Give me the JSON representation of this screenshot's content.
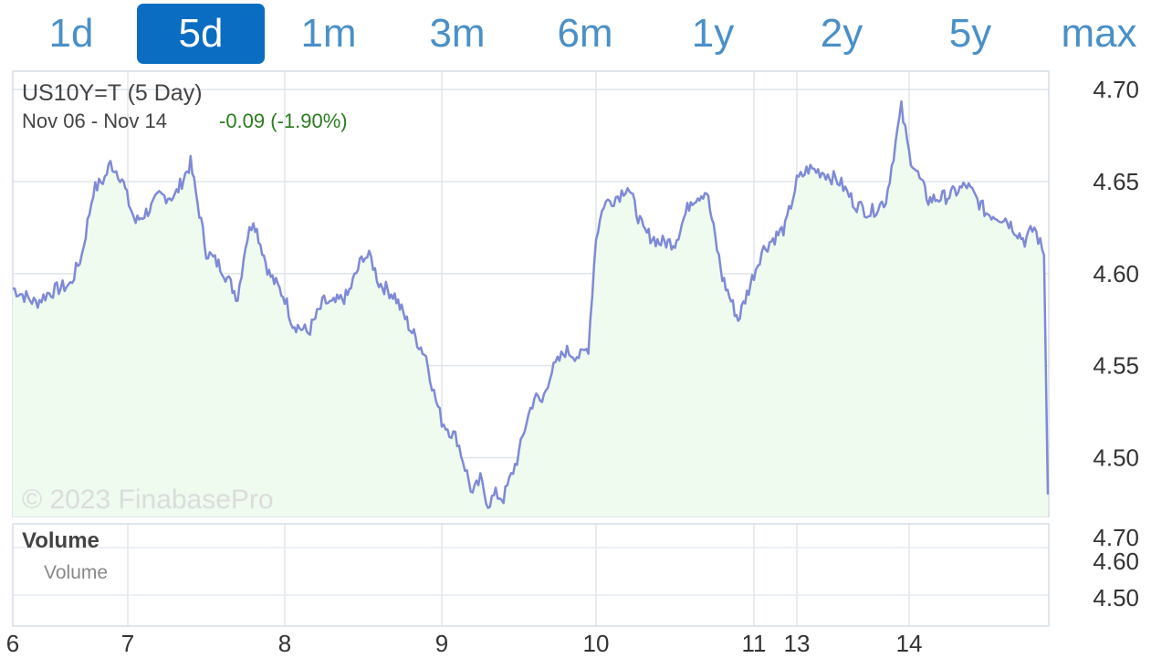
{
  "range_tabs": [
    {
      "label": "1d",
      "active": false
    },
    {
      "label": "5d",
      "active": true
    },
    {
      "label": "1m",
      "active": false
    },
    {
      "label": "3m",
      "active": false
    },
    {
      "label": "6m",
      "active": false
    },
    {
      "label": "1y",
      "active": false
    },
    {
      "label": "2y",
      "active": false
    },
    {
      "label": "5y",
      "active": false
    },
    {
      "label": "max",
      "active": false
    }
  ],
  "colors": {
    "line": "#7f8ad6",
    "fill": "#eefbee",
    "change": "#2a7d1e",
    "tab_active": "#0a6dc2",
    "tab_text": "#4a90c8"
  },
  "chart_data": {
    "type": "line",
    "title": "US10Y=T (5 Day)",
    "subtitle": "Nov 06 - Nov 14",
    "change": "-0.09 (-1.90%)",
    "watermark": "© 2023 FinabasePro",
    "ylim": [
      4.468,
      4.71
    ],
    "y_ticks": [
      "4.70",
      "4.65",
      "4.60",
      "4.55",
      "4.50"
    ],
    "y_tick_values": [
      4.7,
      4.65,
      4.6,
      4.55,
      4.5
    ],
    "x_ticks": [
      "6",
      "7",
      "8",
      "9",
      "10",
      "11",
      "13",
      "14"
    ],
    "x_tick_positions": [
      0,
      1,
      2,
      3,
      4,
      5,
      5.275,
      6.0
    ],
    "x_range": [
      0,
      6.68
    ],
    "grid": true,
    "series": [
      {
        "x": [
          0,
          0.1,
          0.2,
          0.3,
          0.4,
          0.5,
          0.6,
          0.7,
          0.8,
          0.85,
          0.95,
          1.05,
          1.15,
          1.2,
          1.3,
          1.4,
          1.5,
          1.6,
          1.7,
          1.75,
          1.8,
          1.9,
          2.0,
          2.05,
          2.15,
          2.25,
          2.3,
          2.4,
          2.5,
          2.55,
          2.6,
          2.7,
          2.8,
          2.9,
          2.95,
          3.0,
          3.1,
          3.2,
          3.25,
          3.3,
          3.35,
          3.4,
          3.5,
          3.55,
          3.6,
          3.65,
          3.7,
          3.8,
          3.9,
          3.95,
          4.0,
          4.05,
          4.1,
          4.15,
          4.2,
          4.3,
          4.4,
          4.5,
          4.6,
          4.7,
          4.8,
          4.9,
          5.0,
          5.05,
          5.1,
          5.2,
          5.275,
          5.35,
          5.45,
          5.55,
          5.65,
          5.75,
          5.85,
          5.95,
          6.0,
          6.1,
          6.2,
          6.3,
          6.4,
          6.5,
          6.6,
          6.65,
          6.7,
          6.72
        ],
        "values": [
          4.592,
          4.588,
          4.584,
          4.589,
          4.592,
          4.594,
          4.61,
          4.645,
          4.652,
          4.66,
          4.652,
          4.628,
          4.636,
          4.642,
          4.642,
          4.66,
          4.612,
          4.603,
          4.587,
          4.616,
          4.63,
          4.6,
          4.587,
          4.573,
          4.568,
          4.585,
          4.583,
          4.588,
          4.61,
          4.608,
          4.595,
          4.588,
          4.57,
          4.555,
          4.535,
          4.52,
          4.51,
          4.48,
          4.488,
          4.475,
          4.48,
          4.478,
          4.502,
          4.52,
          4.533,
          4.53,
          4.545,
          4.558,
          4.555,
          4.56,
          4.62,
          4.638,
          4.64,
          4.643,
          4.648,
          4.623,
          4.617,
          4.617,
          4.64,
          4.645,
          4.598,
          4.575,
          4.6,
          4.612,
          4.617,
          4.625,
          4.65,
          4.657,
          4.655,
          4.65,
          4.638,
          4.633,
          4.64,
          4.69,
          4.665,
          4.64,
          4.642,
          4.648,
          4.633,
          4.63,
          4.618,
          4.625,
          4.61,
          4.48
        ]
      }
    ],
    "volume_panel": {
      "title": "Volume",
      "legend": "Volume",
      "y_ticks": [
        "4.70",
        "4.60",
        "4.50"
      ]
    }
  }
}
